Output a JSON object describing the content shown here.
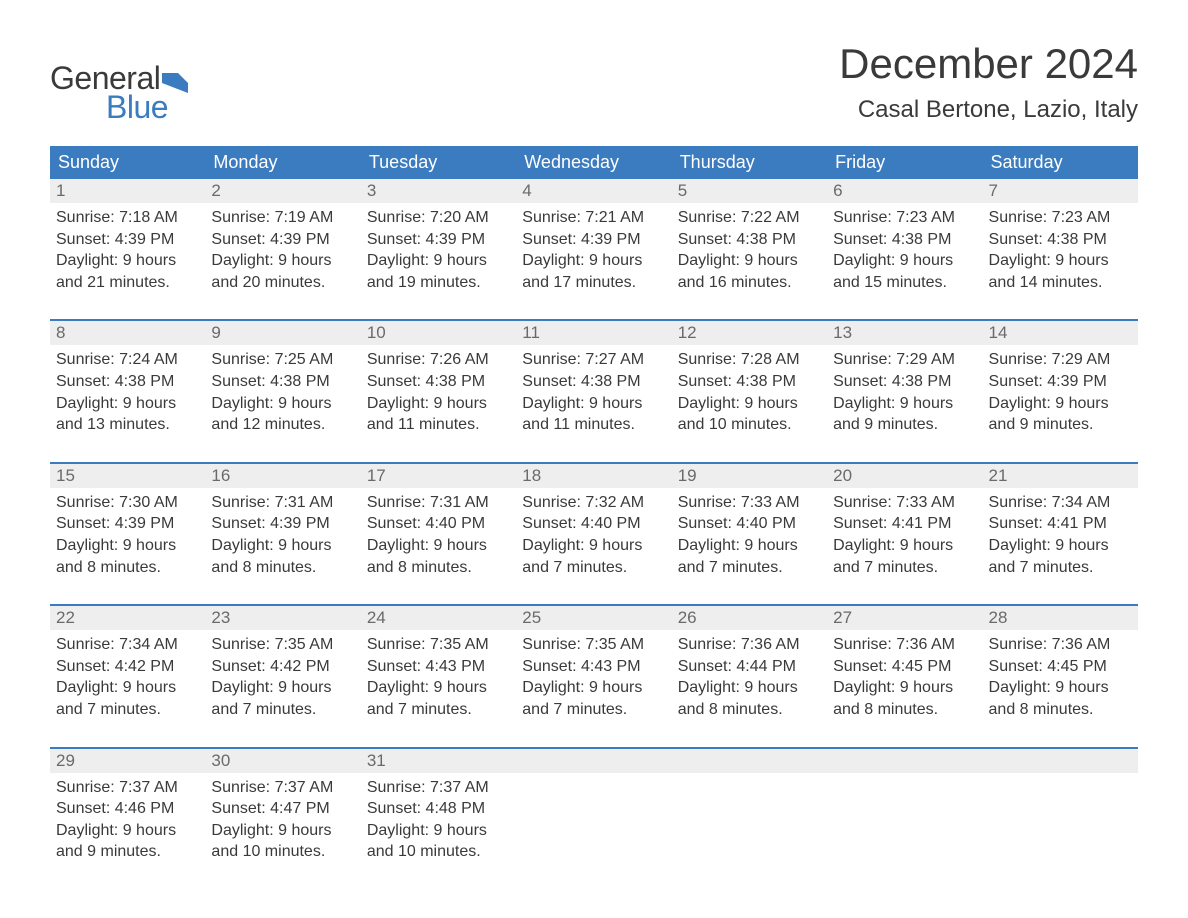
{
  "brand": {
    "general": "General",
    "blue": "Blue"
  },
  "colors": {
    "header_bg": "#3b7bbf",
    "header_text": "#ffffff",
    "daynum_bg": "#eeeeee",
    "daynum_text": "#6a6a6a",
    "body_text": "#3a3a3a",
    "accent": "#3b7bbf",
    "page_bg": "#ffffff"
  },
  "title": "December 2024",
  "location": "Casal Bertone, Lazio, Italy",
  "day_names": [
    "Sunday",
    "Monday",
    "Tuesday",
    "Wednesday",
    "Thursday",
    "Friday",
    "Saturday"
  ],
  "weeks": [
    [
      {
        "n": "1",
        "sr": "Sunrise: 7:18 AM",
        "ss": "Sunset: 4:39 PM",
        "dl": "Daylight: 9 hours and 21 minutes."
      },
      {
        "n": "2",
        "sr": "Sunrise: 7:19 AM",
        "ss": "Sunset: 4:39 PM",
        "dl": "Daylight: 9 hours and 20 minutes."
      },
      {
        "n": "3",
        "sr": "Sunrise: 7:20 AM",
        "ss": "Sunset: 4:39 PM",
        "dl": "Daylight: 9 hours and 19 minutes."
      },
      {
        "n": "4",
        "sr": "Sunrise: 7:21 AM",
        "ss": "Sunset: 4:39 PM",
        "dl": "Daylight: 9 hours and 17 minutes."
      },
      {
        "n": "5",
        "sr": "Sunrise: 7:22 AM",
        "ss": "Sunset: 4:38 PM",
        "dl": "Daylight: 9 hours and 16 minutes."
      },
      {
        "n": "6",
        "sr": "Sunrise: 7:23 AM",
        "ss": "Sunset: 4:38 PM",
        "dl": "Daylight: 9 hours and 15 minutes."
      },
      {
        "n": "7",
        "sr": "Sunrise: 7:23 AM",
        "ss": "Sunset: 4:38 PM",
        "dl": "Daylight: 9 hours and 14 minutes."
      }
    ],
    [
      {
        "n": "8",
        "sr": "Sunrise: 7:24 AM",
        "ss": "Sunset: 4:38 PM",
        "dl": "Daylight: 9 hours and 13 minutes."
      },
      {
        "n": "9",
        "sr": "Sunrise: 7:25 AM",
        "ss": "Sunset: 4:38 PM",
        "dl": "Daylight: 9 hours and 12 minutes."
      },
      {
        "n": "10",
        "sr": "Sunrise: 7:26 AM",
        "ss": "Sunset: 4:38 PM",
        "dl": "Daylight: 9 hours and 11 minutes."
      },
      {
        "n": "11",
        "sr": "Sunrise: 7:27 AM",
        "ss": "Sunset: 4:38 PM",
        "dl": "Daylight: 9 hours and 11 minutes."
      },
      {
        "n": "12",
        "sr": "Sunrise: 7:28 AM",
        "ss": "Sunset: 4:38 PM",
        "dl": "Daylight: 9 hours and 10 minutes."
      },
      {
        "n": "13",
        "sr": "Sunrise: 7:29 AM",
        "ss": "Sunset: 4:38 PM",
        "dl": "Daylight: 9 hours and 9 minutes."
      },
      {
        "n": "14",
        "sr": "Sunrise: 7:29 AM",
        "ss": "Sunset: 4:39 PM",
        "dl": "Daylight: 9 hours and 9 minutes."
      }
    ],
    [
      {
        "n": "15",
        "sr": "Sunrise: 7:30 AM",
        "ss": "Sunset: 4:39 PM",
        "dl": "Daylight: 9 hours and 8 minutes."
      },
      {
        "n": "16",
        "sr": "Sunrise: 7:31 AM",
        "ss": "Sunset: 4:39 PM",
        "dl": "Daylight: 9 hours and 8 minutes."
      },
      {
        "n": "17",
        "sr": "Sunrise: 7:31 AM",
        "ss": "Sunset: 4:40 PM",
        "dl": "Daylight: 9 hours and 8 minutes."
      },
      {
        "n": "18",
        "sr": "Sunrise: 7:32 AM",
        "ss": "Sunset: 4:40 PM",
        "dl": "Daylight: 9 hours and 7 minutes."
      },
      {
        "n": "19",
        "sr": "Sunrise: 7:33 AM",
        "ss": "Sunset: 4:40 PM",
        "dl": "Daylight: 9 hours and 7 minutes."
      },
      {
        "n": "20",
        "sr": "Sunrise: 7:33 AM",
        "ss": "Sunset: 4:41 PM",
        "dl": "Daylight: 9 hours and 7 minutes."
      },
      {
        "n": "21",
        "sr": "Sunrise: 7:34 AM",
        "ss": "Sunset: 4:41 PM",
        "dl": "Daylight: 9 hours and 7 minutes."
      }
    ],
    [
      {
        "n": "22",
        "sr": "Sunrise: 7:34 AM",
        "ss": "Sunset: 4:42 PM",
        "dl": "Daylight: 9 hours and 7 minutes."
      },
      {
        "n": "23",
        "sr": "Sunrise: 7:35 AM",
        "ss": "Sunset: 4:42 PM",
        "dl": "Daylight: 9 hours and 7 minutes."
      },
      {
        "n": "24",
        "sr": "Sunrise: 7:35 AM",
        "ss": "Sunset: 4:43 PM",
        "dl": "Daylight: 9 hours and 7 minutes."
      },
      {
        "n": "25",
        "sr": "Sunrise: 7:35 AM",
        "ss": "Sunset: 4:43 PM",
        "dl": "Daylight: 9 hours and 7 minutes."
      },
      {
        "n": "26",
        "sr": "Sunrise: 7:36 AM",
        "ss": "Sunset: 4:44 PM",
        "dl": "Daylight: 9 hours and 8 minutes."
      },
      {
        "n": "27",
        "sr": "Sunrise: 7:36 AM",
        "ss": "Sunset: 4:45 PM",
        "dl": "Daylight: 9 hours and 8 minutes."
      },
      {
        "n": "28",
        "sr": "Sunrise: 7:36 AM",
        "ss": "Sunset: 4:45 PM",
        "dl": "Daylight: 9 hours and 8 minutes."
      }
    ],
    [
      {
        "n": "29",
        "sr": "Sunrise: 7:37 AM",
        "ss": "Sunset: 4:46 PM",
        "dl": "Daylight: 9 hours and 9 minutes."
      },
      {
        "n": "30",
        "sr": "Sunrise: 7:37 AM",
        "ss": "Sunset: 4:47 PM",
        "dl": "Daylight: 9 hours and 10 minutes."
      },
      {
        "n": "31",
        "sr": "Sunrise: 7:37 AM",
        "ss": "Sunset: 4:48 PM",
        "dl": "Daylight: 9 hours and 10 minutes."
      },
      null,
      null,
      null,
      null
    ]
  ]
}
